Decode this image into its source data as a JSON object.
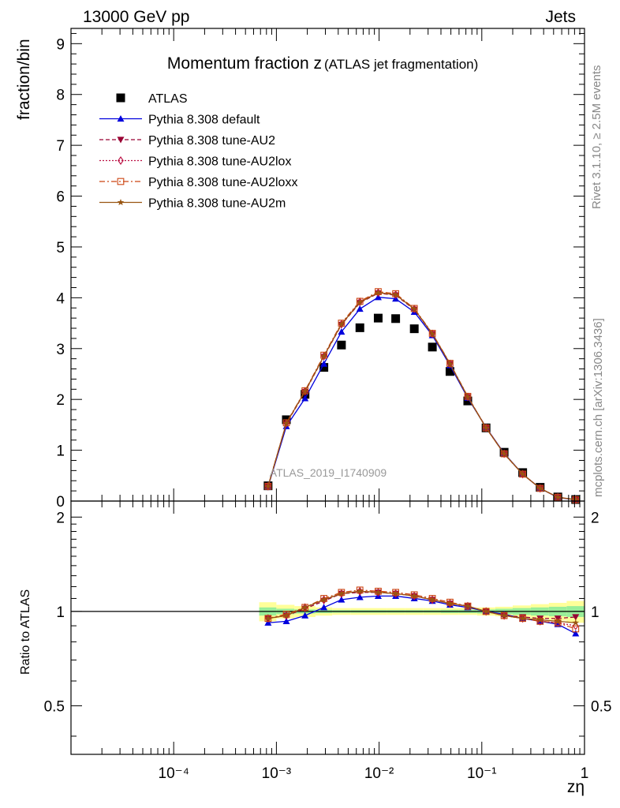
{
  "header": {
    "left": "13000 GeV pp",
    "right": "Jets"
  },
  "side_labels": {
    "rivet": "Rivet 3.1.10, ≥ 2.5M events",
    "mcplots": "mcplots.cern.ch [arXiv:1306.3436]"
  },
  "watermark": "ATLAS_2019_I1740909",
  "chart_data": {
    "type": "scatter",
    "title_main": "Momentum fraction z",
    "title_sub": "(ATLAS jet fragmentation)",
    "xlabel": "zη",
    "ylabel": "fraction/bin",
    "ratio_ylabel": "Ratio to ATLAS",
    "x_scale": "log",
    "xlim": [
      1e-05,
      1
    ],
    "ylim": [
      0,
      9.3
    ],
    "ratio_ylim": [
      0.35,
      2.25
    ],
    "x_ticks": [
      {
        "value": 0.0001,
        "label": "10⁻⁴"
      },
      {
        "value": 0.001,
        "label": "10⁻³"
      },
      {
        "value": 0.01,
        "label": "10⁻²"
      },
      {
        "value": 0.1,
        "label": "10⁻¹"
      },
      {
        "value": 1,
        "label": "1"
      }
    ],
    "y_ticks": [
      "0",
      "1",
      "2",
      "3",
      "4",
      "5",
      "6",
      "7",
      "8",
      "9"
    ],
    "ratio_y_ticks": [
      "0.5",
      "1",
      "2"
    ],
    "legend_position": "top-left",
    "x": [
      0.00083,
      0.00125,
      0.0019,
      0.0029,
      0.0043,
      0.0065,
      0.0098,
      0.0145,
      0.022,
      0.033,
      0.049,
      0.073,
      0.11,
      0.165,
      0.25,
      0.37,
      0.55,
      0.82
    ],
    "series": [
      {
        "name": "ATLAS",
        "color": "#000000",
        "marker": "square",
        "line": "none",
        "values": [
          0.3,
          1.6,
          2.1,
          2.63,
          3.07,
          3.41,
          3.6,
          3.59,
          3.39,
          3.03,
          2.55,
          1.97,
          1.44,
          0.96,
          0.56,
          0.27,
          0.08,
          0.03
        ],
        "ratio": [
          1,
          1,
          1,
          1,
          1,
          1,
          1,
          1,
          1,
          1,
          1,
          1,
          1,
          1,
          1,
          1,
          1,
          1
        ]
      },
      {
        "name": "Pythia 8.308 default",
        "color": "#0000dd",
        "marker": "triangle-up",
        "line": "solid",
        "values": [
          0.28,
          1.47,
          2.02,
          2.7,
          3.33,
          3.78,
          4.01,
          3.98,
          3.72,
          3.26,
          2.67,
          2.03,
          1.45,
          0.94,
          0.53,
          0.25,
          0.07,
          0.025
        ],
        "ratio": [
          0.92,
          0.93,
          0.97,
          1.03,
          1.09,
          1.11,
          1.12,
          1.12,
          1.1,
          1.08,
          1.05,
          1.03,
          1.0,
          0.98,
          0.95,
          0.93,
          0.91,
          0.85
        ]
      },
      {
        "name": "Pythia 8.308 tune-AU2",
        "color": "#990033",
        "marker": "triangle-down",
        "line": "dashed",
        "values": [
          0.29,
          1.52,
          2.15,
          2.84,
          3.47,
          3.9,
          4.09,
          4.05,
          3.77,
          3.29,
          2.7,
          2.05,
          1.45,
          0.93,
          0.53,
          0.25,
          0.075,
          0.029
        ],
        "ratio": [
          0.95,
          0.97,
          1.02,
          1.08,
          1.14,
          1.15,
          1.15,
          1.14,
          1.12,
          1.09,
          1.06,
          1.04,
          1.0,
          0.97,
          0.96,
          0.95,
          0.95,
          0.96
        ]
      },
      {
        "name": "Pythia 8.308 tune-AU2lox",
        "color": "#bb1144",
        "marker": "diamond-open",
        "line": "dotted",
        "values": [
          0.29,
          1.53,
          2.16,
          2.85,
          3.48,
          3.92,
          4.1,
          4.06,
          3.78,
          3.29,
          2.7,
          2.05,
          1.44,
          0.93,
          0.53,
          0.25,
          0.074,
          0.027
        ],
        "ratio": [
          0.95,
          0.97,
          1.03,
          1.09,
          1.14,
          1.16,
          1.15,
          1.14,
          1.12,
          1.09,
          1.06,
          1.04,
          1.0,
          0.97,
          0.95,
          0.93,
          0.92,
          0.9
        ]
      },
      {
        "name": "Pythia 8.308 tune-AU2loxx",
        "color": "#cc4411",
        "marker": "square-open",
        "line": "dashdot",
        "values": [
          0.29,
          1.54,
          2.17,
          2.87,
          3.5,
          3.93,
          4.12,
          4.08,
          3.79,
          3.3,
          2.71,
          2.06,
          1.44,
          0.93,
          0.53,
          0.25,
          0.074,
          0.027
        ],
        "ratio": [
          0.95,
          0.98,
          1.03,
          1.1,
          1.15,
          1.17,
          1.16,
          1.15,
          1.13,
          1.1,
          1.07,
          1.04,
          1.0,
          0.97,
          0.95,
          0.93,
          0.92,
          0.88
        ]
      },
      {
        "name": "Pythia 8.308 tune-AU2m",
        "color": "#995511",
        "marker": "star",
        "line": "solid",
        "values": [
          0.29,
          1.53,
          2.16,
          2.85,
          3.48,
          3.91,
          4.1,
          4.06,
          3.78,
          3.29,
          2.7,
          2.05,
          1.44,
          0.93,
          0.53,
          0.25,
          0.075,
          0.028
        ],
        "ratio": [
          0.95,
          0.97,
          1.03,
          1.09,
          1.14,
          1.16,
          1.15,
          1.14,
          1.12,
          1.09,
          1.06,
          1.04,
          1.0,
          0.97,
          0.95,
          0.94,
          0.93,
          0.92
        ]
      }
    ],
    "ratio_bands": {
      "stat_color": "#99ee99",
      "total_color": "#ffff99",
      "x_edges": [
        0.00068,
        0.001,
        0.0015,
        0.0024,
        0.0035,
        0.0053,
        0.008,
        0.012,
        0.018,
        0.027,
        0.04,
        0.06,
        0.09,
        0.135,
        0.2,
        0.3,
        0.45,
        0.67,
        1.0
      ],
      "stat_half": [
        0.03,
        0.02,
        0.015,
        0.012,
        0.01,
        0.01,
        0.01,
        0.01,
        0.01,
        0.01,
        0.012,
        0.012,
        0.015,
        0.02,
        0.025,
        0.03,
        0.035,
        0.04
      ],
      "total_half": [
        0.07,
        0.05,
        0.04,
        0.03,
        0.025,
        0.025,
        0.025,
        0.025,
        0.025,
        0.025,
        0.025,
        0.025,
        0.03,
        0.035,
        0.045,
        0.055,
        0.065,
        0.08
      ]
    }
  }
}
